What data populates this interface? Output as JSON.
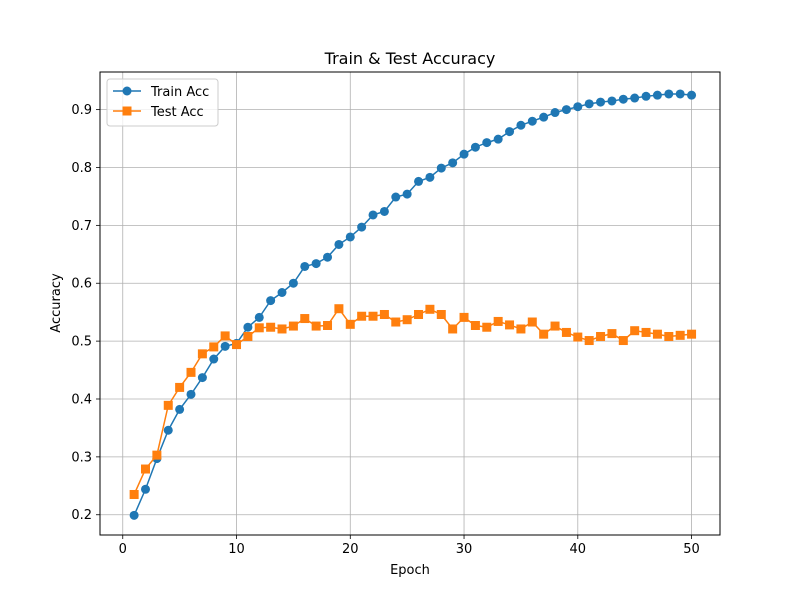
{
  "chart_data": {
    "type": "line",
    "title": "Train & Test Accuracy",
    "xlabel": "Epoch",
    "ylabel": "Accuracy",
    "xlim": [
      -2,
      52.5
    ],
    "ylim": [
      0.165,
      0.965
    ],
    "xticks": [
      0,
      10,
      20,
      30,
      40,
      50
    ],
    "yticks": [
      0.2,
      0.3,
      0.4,
      0.5,
      0.6,
      0.7,
      0.8,
      0.9
    ],
    "grid": true,
    "legend_position": "top-left",
    "x": [
      1,
      2,
      3,
      4,
      5,
      6,
      7,
      8,
      9,
      10,
      11,
      12,
      13,
      14,
      15,
      16,
      17,
      18,
      19,
      20,
      21,
      22,
      23,
      24,
      25,
      26,
      27,
      28,
      29,
      30,
      31,
      32,
      33,
      34,
      35,
      36,
      37,
      38,
      39,
      40,
      41,
      42,
      43,
      44,
      45,
      46,
      47,
      48,
      49,
      50
    ],
    "series": [
      {
        "name": "Train Acc",
        "color": "#1f77b4",
        "marker": "circle",
        "values": [
          0.199,
          0.244,
          0.297,
          0.346,
          0.382,
          0.408,
          0.437,
          0.469,
          0.491,
          0.496,
          0.524,
          0.541,
          0.57,
          0.584,
          0.6,
          0.629,
          0.634,
          0.645,
          0.667,
          0.68,
          0.697,
          0.718,
          0.724,
          0.749,
          0.754,
          0.776,
          0.783,
          0.799,
          0.808,
          0.823,
          0.835,
          0.843,
          0.849,
          0.862,
          0.873,
          0.88,
          0.887,
          0.895,
          0.9,
          0.905,
          0.91,
          0.913,
          0.915,
          0.918,
          0.92,
          0.923,
          0.925,
          0.927,
          0.927,
          0.925
        ]
      },
      {
        "name": "Test Acc",
        "color": "#ff7f0e",
        "marker": "square",
        "values": [
          0.235,
          0.279,
          0.303,
          0.389,
          0.42,
          0.446,
          0.478,
          0.49,
          0.509,
          0.494,
          0.508,
          0.523,
          0.524,
          0.521,
          0.526,
          0.539,
          0.526,
          0.527,
          0.556,
          0.529,
          0.543,
          0.543,
          0.546,
          0.533,
          0.537,
          0.546,
          0.555,
          0.546,
          0.521,
          0.541,
          0.527,
          0.524,
          0.534,
          0.528,
          0.521,
          0.533,
          0.512,
          0.526,
          0.515,
          0.507,
          0.501,
          0.508,
          0.513,
          0.501,
          0.518,
          0.515,
          0.512,
          0.508,
          0.51,
          0.512
        ]
      }
    ]
  }
}
